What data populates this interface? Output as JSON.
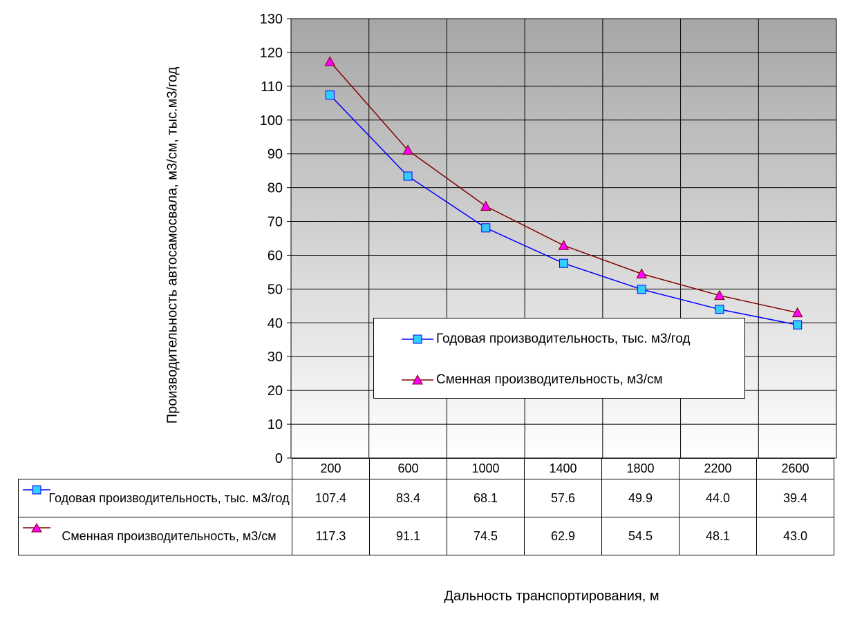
{
  "chart_data": {
    "type": "line",
    "ylabel": "Производительность автосамосвала, м3/см, тыс.м3/год",
    "xlabel": "Дальность транспортирования, м",
    "categories": [
      "200",
      "600",
      "1000",
      "1400",
      "1800",
      "2200",
      "2600"
    ],
    "ylim": [
      0,
      130
    ],
    "yticks": [
      "0",
      "10",
      "20",
      "30",
      "40",
      "50",
      "60",
      "70",
      "80",
      "90",
      "100",
      "110",
      "120",
      "130"
    ],
    "grid": true,
    "legend_position": "center-right",
    "data_table": true,
    "series": [
      {
        "name": "Годовая производительность, тыс. м3/год",
        "table_label": "Годовая производительность, тыс. м3/год",
        "values": [
          107.4,
          83.4,
          68.1,
          57.6,
          49.9,
          44.0,
          39.4
        ],
        "value_labels": [
          "107.4",
          "83.4",
          "68.1",
          "57.6",
          "49.9",
          "44.0",
          "39.4"
        ],
        "line_color": "#0000ff",
        "marker": "square",
        "marker_color": "#33ccff"
      },
      {
        "name": "Сменная производительность, м3/см",
        "table_label": "Сменная производительность, м3/см",
        "values": [
          117.3,
          91.1,
          74.5,
          62.9,
          54.5,
          48.1,
          43.0
        ],
        "value_labels": [
          "117.3",
          "91.1",
          "74.5",
          "62.9",
          "54.5",
          "48.1",
          "43.0"
        ],
        "line_color": "#800000",
        "marker": "triangle",
        "marker_color": "#ff00ff"
      }
    ]
  }
}
